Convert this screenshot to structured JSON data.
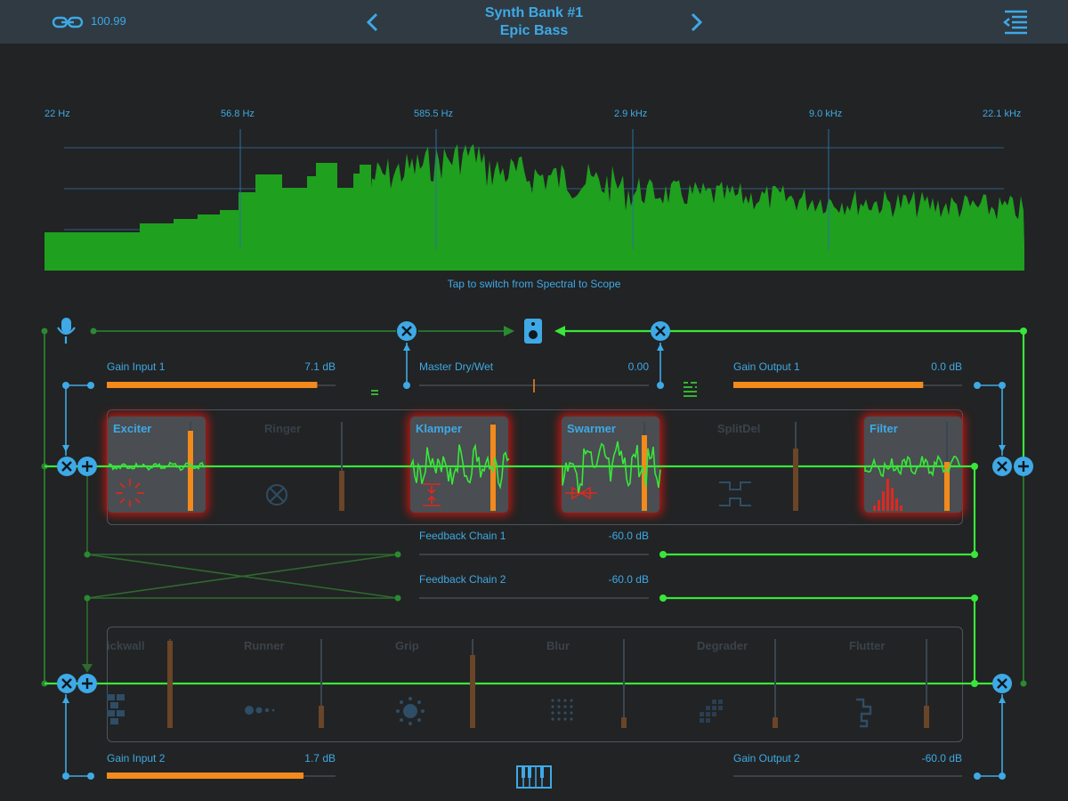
{
  "header": {
    "tempo": "100.99",
    "bank": "Synth Bank #1",
    "preset": "Epic Bass"
  },
  "spectrum": {
    "freq_labels": [
      "22 Hz",
      "56.8 Hz",
      "585.5 Hz",
      "2.9 kHz",
      "9.0 kHz",
      "22.1 kHz"
    ],
    "hint": "Tap to switch from Spectral to Scope",
    "fill_color": "#1fa01f"
  },
  "params": {
    "gain_input_1": {
      "label": "Gain Input 1",
      "value": "7.1 dB",
      "level": 0.92
    },
    "master_dry_wet": {
      "label": "Master Dry/Wet",
      "value": "0.00"
    },
    "gain_output_1": {
      "label": "Gain Output 1",
      "value": "0.0 dB",
      "level": 0.83
    },
    "feedback_chain_1": {
      "label": "Feedback Chain 1",
      "value": "-60.0 dB"
    },
    "feedback_chain_2": {
      "label": "Feedback Chain 2",
      "value": "-60.0 dB"
    },
    "gain_input_2": {
      "label": "Gain Input 2",
      "value": "1.7 dB",
      "level": 0.86
    },
    "gain_output_2": {
      "label": "Gain Output 2",
      "value": "-60.0 dB",
      "level": 0.0
    }
  },
  "chain1": [
    {
      "name": "Exciter",
      "active": true,
      "level": 0.9
    },
    {
      "name": "Ringer",
      "active": false,
      "level": 0.45
    },
    {
      "name": "Klamper",
      "active": true,
      "level": 0.97
    },
    {
      "name": "Swarmer",
      "active": true,
      "level": 0.85
    },
    {
      "name": "SplitDel",
      "active": false,
      "level": 0.7
    },
    {
      "name": "Filter",
      "active": true,
      "level": 0.55
    }
  ],
  "chain2": [
    {
      "name": "ickwall",
      "level": 0.98
    },
    {
      "name": "Runner",
      "level": 0.25
    },
    {
      "name": "Grip",
      "level": 0.82
    },
    {
      "name": "Blur",
      "level": 0.12
    },
    {
      "name": "Degrader",
      "level": 0.12
    },
    {
      "name": "Flutter",
      "level": 0.25
    }
  ],
  "colors": {
    "accent": "#3ea9e6",
    "signal": "#39e63a",
    "meter": "#f28a1c",
    "glow": "#c01812",
    "background": "#222324"
  }
}
